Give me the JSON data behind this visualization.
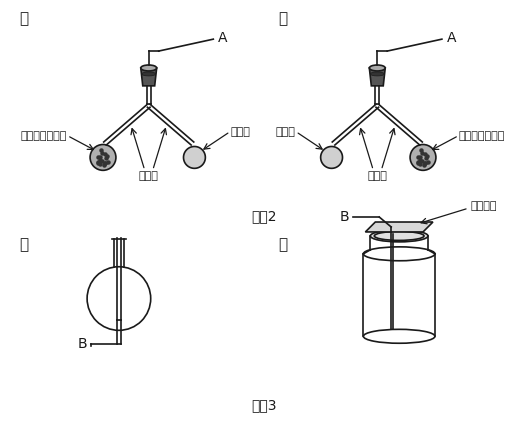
{
  "bg_color": "#ffffff",
  "line_color": "#1a1a1a",
  "label_a": "ア",
  "label_i": "イ",
  "label_u": "ウ",
  "label_e": "エ",
  "fig2_caption": "図　2",
  "fig3_caption": "図　3",
  "label_A": "A",
  "label_B": "B",
  "label_tansan_left": "炭酸カルシウム",
  "label_kiensan_right": "希塩酸",
  "label_kiensan_left": "希塩酸",
  "label_tansan_right": "炭酸カルシウム",
  "label_kubire": "くびれ",
  "label_garasu": "ガラス板"
}
